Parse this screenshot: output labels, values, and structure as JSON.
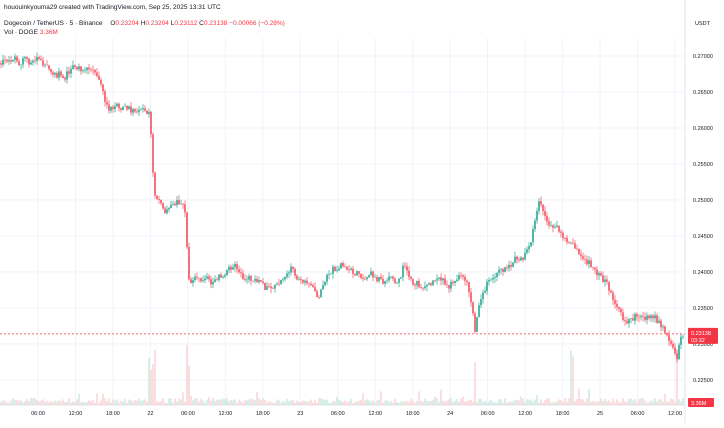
{
  "header": {
    "credit": "hououinkyouma29 created with TradingView.com, Sep 25, 2025 13:31 UTC",
    "symbol": "Dogecoin / TetherUS · 5 · Binance",
    "ohlc": {
      "o_label": "O",
      "o": "0.23204",
      "h_label": "H",
      "h": "0.23204",
      "l_label": "L",
      "l": "0.23112",
      "c_label": "C",
      "c": "0.23138",
      "change": "−0.00066 (−0.28%)"
    },
    "volume_label": "Vol · DOGE",
    "volume_value": "3.36M"
  },
  "currency_label": "USDT",
  "price_badge": {
    "price": "0.23138",
    "countdown": "03:32"
  },
  "volume_badge": "3.36M",
  "colors": {
    "up": "#089981",
    "down": "#f23645",
    "grid": "#f0f3fa",
    "axis_text": "#131722"
  },
  "chart_data": {
    "type": "candlestick",
    "title": "Dogecoin / TetherUS · 5 · Binance",
    "y_ticks": [
      "0.27000",
      "0.26500",
      "0.26000",
      "0.25500",
      "0.25000",
      "0.24500",
      "0.24000",
      "0.23500",
      "0.23000",
      "0.22500"
    ],
    "ylim": [
      0.2215,
      0.2725
    ],
    "x_ticks": [
      "06:00",
      "12:00",
      "18:00",
      "22",
      "06:00",
      "12:00",
      "18:00",
      "23",
      "06:00",
      "12:00",
      "18:00",
      "24",
      "06:00",
      "12:00",
      "18:00",
      "25",
      "06:00",
      "12:00"
    ],
    "current_price": 0.23138,
    "price_path": [
      [
        0,
        0.269
      ],
      [
        4,
        0.27
      ],
      [
        8,
        0.2693
      ],
      [
        14,
        0.2698
      ],
      [
        20,
        0.269
      ],
      [
        26,
        0.2695
      ],
      [
        32,
        0.269
      ],
      [
        38,
        0.2697
      ],
      [
        44,
        0.269
      ],
      [
        50,
        0.268
      ],
      [
        55,
        0.2672
      ],
      [
        60,
        0.2675
      ],
      [
        64,
        0.267
      ],
      [
        70,
        0.268
      ],
      [
        76,
        0.2685
      ],
      [
        82,
        0.2678
      ],
      [
        88,
        0.2683
      ],
      [
        95,
        0.2675
      ],
      [
        100,
        0.2665
      ],
      [
        105,
        0.264
      ],
      [
        110,
        0.2625
      ],
      [
        116,
        0.2632
      ],
      [
        122,
        0.2625
      ],
      [
        128,
        0.263
      ],
      [
        134,
        0.262
      ],
      [
        140,
        0.2628
      ],
      [
        145,
        0.262
      ],
      [
        150,
        0.262
      ],
      [
        152,
        0.256
      ],
      [
        154,
        0.251
      ],
      [
        158,
        0.25
      ],
      [
        162,
        0.249
      ],
      [
        166,
        0.248
      ],
      [
        170,
        0.2495
      ],
      [
        174,
        0.249
      ],
      [
        178,
        0.25
      ],
      [
        183,
        0.249
      ],
      [
        186,
        0.2475
      ],
      [
        188,
        0.24
      ],
      [
        190,
        0.2385
      ],
      [
        195,
        0.2395
      ],
      [
        200,
        0.2388
      ],
      [
        206,
        0.2392
      ],
      [
        212,
        0.2385
      ],
      [
        218,
        0.2392
      ],
      [
        224,
        0.2398
      ],
      [
        230,
        0.2405
      ],
      [
        236,
        0.241
      ],
      [
        240,
        0.2395
      ],
      [
        246,
        0.2388
      ],
      [
        252,
        0.2392
      ],
      [
        258,
        0.2385
      ],
      [
        264,
        0.238
      ],
      [
        270,
        0.2375
      ],
      [
        276,
        0.2382
      ],
      [
        282,
        0.239
      ],
      [
        288,
        0.24
      ],
      [
        292,
        0.2405
      ],
      [
        296,
        0.2395
      ],
      [
        302,
        0.2388
      ],
      [
        308,
        0.238
      ],
      [
        314,
        0.2375
      ],
      [
        318,
        0.236
      ],
      [
        322,
        0.2375
      ],
      [
        326,
        0.239
      ],
      [
        330,
        0.24
      ],
      [
        336,
        0.2405
      ],
      [
        342,
        0.241
      ],
      [
        348,
        0.2405
      ],
      [
        354,
        0.24
      ],
      [
        360,
        0.2395
      ],
      [
        366,
        0.239
      ],
      [
        372,
        0.2398
      ],
      [
        378,
        0.239
      ],
      [
        384,
        0.2385
      ],
      [
        390,
        0.239
      ],
      [
        396,
        0.2385
      ],
      [
        402,
        0.2395
      ],
      [
        404,
        0.2415
      ],
      [
        408,
        0.2395
      ],
      [
        414,
        0.2385
      ],
      [
        420,
        0.2382
      ],
      [
        426,
        0.2378
      ],
      [
        432,
        0.2388
      ],
      [
        438,
        0.2395
      ],
      [
        444,
        0.2385
      ],
      [
        450,
        0.238
      ],
      [
        456,
        0.239
      ],
      [
        462,
        0.2395
      ],
      [
        468,
        0.238
      ],
      [
        472,
        0.235
      ],
      [
        475,
        0.232
      ],
      [
        478,
        0.235
      ],
      [
        482,
        0.237
      ],
      [
        486,
        0.238
      ],
      [
        492,
        0.2392
      ],
      [
        498,
        0.2398
      ],
      [
        504,
        0.2405
      ],
      [
        510,
        0.241
      ],
      [
        516,
        0.2418
      ],
      [
        522,
        0.242
      ],
      [
        526,
        0.2425
      ],
      [
        530,
        0.2435
      ],
      [
        535,
        0.247
      ],
      [
        540,
        0.25
      ],
      [
        544,
        0.248
      ],
      [
        548,
        0.247
      ],
      [
        552,
        0.2462
      ],
      [
        556,
        0.2465
      ],
      [
        560,
        0.2455
      ],
      [
        566,
        0.2445
      ],
      [
        572,
        0.244
      ],
      [
        578,
        0.243
      ],
      [
        584,
        0.242
      ],
      [
        590,
        0.241
      ],
      [
        596,
        0.24
      ],
      [
        602,
        0.2392
      ],
      [
        608,
        0.238
      ],
      [
        614,
        0.236
      ],
      [
        620,
        0.2345
      ],
      [
        626,
        0.233
      ],
      [
        632,
        0.2335
      ],
      [
        638,
        0.234
      ],
      [
        644,
        0.2335
      ],
      [
        650,
        0.234
      ],
      [
        656,
        0.2335
      ],
      [
        662,
        0.2325
      ],
      [
        666,
        0.2315
      ],
      [
        670,
        0.2305
      ],
      [
        674,
        0.2295
      ],
      [
        677,
        0.2275
      ],
      [
        680,
        0.2305
      ],
      [
        683,
        0.2314
      ]
    ]
  }
}
